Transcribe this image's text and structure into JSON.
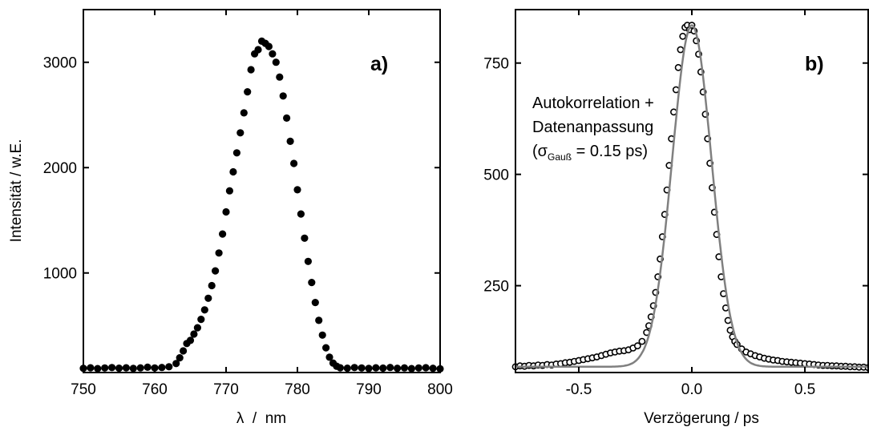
{
  "chart_data": [
    {
      "type": "scatter",
      "panel_label": "a)",
      "xlabel": "λ  /  nm",
      "ylabel": "Intensität / w.E.",
      "xlim": [
        750,
        800
      ],
      "ylim": [
        55,
        3500
      ],
      "xticks": [
        750,
        760,
        770,
        780,
        790,
        800
      ],
      "yticks": [
        1000,
        2000,
        3000
      ],
      "marker": "filled-circle",
      "color": "#000000",
      "series": [
        {
          "x": [
            750.0,
            751.0,
            752.0,
            753.0,
            754.0,
            755.0,
            756.0,
            757.0,
            758.0,
            759.0,
            760.0,
            761.0,
            762.0,
            763.0,
            763.5,
            764.0,
            764.5,
            765.0,
            765.5,
            766.0,
            766.5,
            767.0,
            767.5,
            768.0,
            768.5,
            769.0,
            769.5,
            770.0,
            770.5,
            771.0,
            771.5,
            772.0,
            772.5,
            773.0,
            773.5,
            774.0,
            774.5,
            775.0,
            775.5,
            776.0,
            776.5,
            777.0,
            777.5,
            778.0,
            778.5,
            779.0,
            779.5,
            780.0,
            780.5,
            781.0,
            781.5,
            782.0,
            782.5,
            783.0,
            783.5,
            784.0,
            784.5,
            785.0,
            785.5,
            786.0,
            787.0,
            788.0,
            789.0,
            790.0,
            791.0,
            792.0,
            793.0,
            794.0,
            795.0,
            796.0,
            797.0,
            798.0,
            799.0,
            800.0
          ],
          "y": [
            95,
            100,
            92,
            98,
            102,
            96,
            100,
            94,
            99,
            105,
            98,
            103,
            110,
            140,
            195,
            260,
            330,
            360,
            420,
            480,
            560,
            650,
            760,
            880,
            1020,
            1190,
            1370,
            1580,
            1780,
            1960,
            2140,
            2330,
            2520,
            2720,
            2930,
            3080,
            3120,
            3200,
            3180,
            3150,
            3080,
            3000,
            2860,
            2680,
            2470,
            2250,
            2040,
            1790,
            1560,
            1330,
            1110,
            910,
            720,
            550,
            410,
            290,
            200,
            145,
            115,
            100,
            96,
            102,
            98,
            94,
            100,
            97,
            103,
            95,
            99,
            92,
            98,
            101,
            95,
            90
          ]
        }
      ]
    },
    {
      "type": "scatter",
      "panel_label": "b)",
      "xlabel": "Verzögerung / ps",
      "xlim": [
        -0.78,
        0.78
      ],
      "ylim": [
        55,
        870
      ],
      "xticks": [
        -0.5,
        0.0,
        0.5
      ],
      "xtick_labels": [
        "-0.5",
        "0.0",
        "0.5"
      ],
      "yticks": [
        250,
        500,
        750
      ],
      "marker": "open-circle",
      "color": "#000000",
      "fit_color": "#808080",
      "annotation": {
        "line1": "Autokorrelation +",
        "line2": "Datenanpassung",
        "line3_prefix": "(σ",
        "line3_sub": "Gauß",
        "line3_suffix": " = 0.15 ps)"
      },
      "series": [
        {
          "x": [
            -0.78,
            -0.76,
            -0.74,
            -0.72,
            -0.7,
            -0.68,
            -0.66,
            -0.64,
            -0.62,
            -0.6,
            -0.58,
            -0.56,
            -0.54,
            -0.52,
            -0.5,
            -0.48,
            -0.46,
            -0.44,
            -0.42,
            -0.4,
            -0.38,
            -0.36,
            -0.34,
            -0.32,
            -0.3,
            -0.28,
            -0.26,
            -0.24,
            -0.22,
            -0.2,
            -0.19,
            -0.18,
            -0.17,
            -0.16,
            -0.15,
            -0.14,
            -0.13,
            -0.12,
            -0.11,
            -0.1,
            -0.09,
            -0.08,
            -0.07,
            -0.06,
            -0.05,
            -0.04,
            -0.03,
            -0.02,
            -0.01,
            0.0,
            0.01,
            0.02,
            0.03,
            0.04,
            0.05,
            0.06,
            0.07,
            0.08,
            0.09,
            0.1,
            0.11,
            0.12,
            0.13,
            0.14,
            0.15,
            0.16,
            0.17,
            0.18,
            0.19,
            0.2,
            0.22,
            0.24,
            0.26,
            0.28,
            0.3,
            0.32,
            0.34,
            0.36,
            0.38,
            0.4,
            0.42,
            0.44,
            0.46,
            0.48,
            0.5,
            0.52,
            0.54,
            0.56,
            0.58,
            0.6,
            0.62,
            0.64,
            0.66,
            0.68,
            0.7,
            0.72,
            0.74,
            0.76,
            0.78
          ],
          "y": [
            68,
            70,
            69,
            71,
            70,
            72,
            71,
            73,
            72,
            74,
            75,
            77,
            78,
            80,
            82,
            84,
            86,
            88,
            90,
            93,
            96,
            99,
            101,
            103,
            104,
            106,
            110,
            115,
            125,
            145,
            160,
            180,
            205,
            235,
            270,
            310,
            360,
            410,
            465,
            520,
            580,
            640,
            690,
            740,
            780,
            810,
            830,
            835,
            825,
            835,
            822,
            800,
            770,
            730,
            685,
            635,
            580,
            525,
            470,
            415,
            365,
            315,
            270,
            232,
            200,
            172,
            150,
            135,
            125,
            118,
            108,
            101,
            97,
            93,
            90,
            87,
            85,
            83,
            82,
            80,
            79,
            78,
            77,
            76,
            75,
            74,
            73,
            72,
            71,
            71,
            70,
            70,
            69,
            69,
            68,
            68,
            67,
            67,
            66
          ]
        }
      ]
    }
  ]
}
